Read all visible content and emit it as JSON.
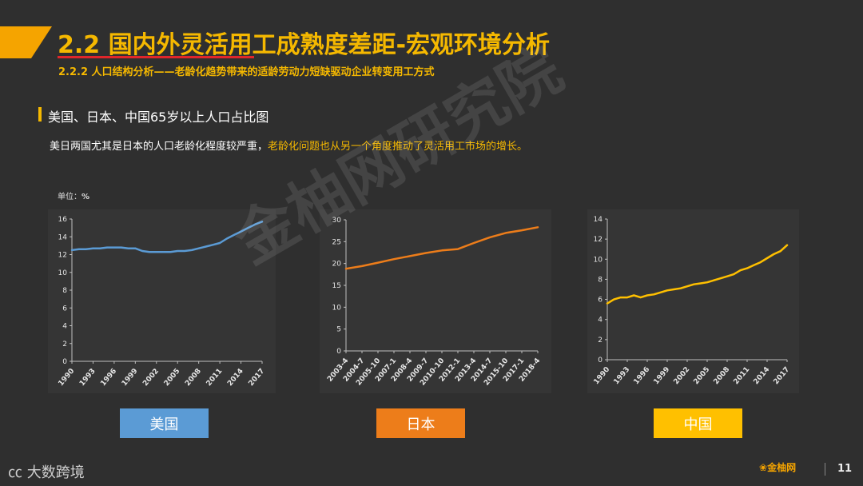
{
  "header": {
    "title": "2.2 国内外灵活用工成熟度差距-宏观环境分析",
    "subtitle": "2.2.2 人口结构分析——老龄化趋势带来的适龄劳动力短缺驱动企业转变用工方式"
  },
  "section": {
    "title": "美国、日本、中国65岁以上人口占比图",
    "desc_normal": "美日两国尤其是日本的人口老龄化程度较严重，",
    "desc_highlight": "老龄化问题也从另一个角度推动了灵活用工市场的增长。"
  },
  "unit_label": "单位：",
  "unit_value": "%",
  "watermark": "金柚网研究院",
  "footer": {
    "logo_text": "大数跨境",
    "brand": "金柚网",
    "page": "11"
  },
  "colors": {
    "usa": "#5b9bd5",
    "japan": "#ed7d1a",
    "china": "#ffc000",
    "accent": "#f5b800"
  },
  "chart_data": [
    {
      "type": "line",
      "title": "美国",
      "x": [
        "1990",
        "1991",
        "1992",
        "1993",
        "1994",
        "1995",
        "1996",
        "1997",
        "1998",
        "1999",
        "2000",
        "2001",
        "2002",
        "2003",
        "2004",
        "2005",
        "2006",
        "2007",
        "2008",
        "2009",
        "2010",
        "2011",
        "2012",
        "2013",
        "2014",
        "2015",
        "2016",
        "2017"
      ],
      "x_ticks": [
        "1990",
        "1993",
        "1996",
        "1999",
        "2002",
        "2005",
        "2008",
        "2011",
        "2014",
        "2017"
      ],
      "values": [
        12.5,
        12.6,
        12.6,
        12.7,
        12.7,
        12.8,
        12.8,
        12.8,
        12.7,
        12.7,
        12.4,
        12.3,
        12.3,
        12.3,
        12.3,
        12.4,
        12.4,
        12.5,
        12.7,
        12.9,
        13.1,
        13.3,
        13.8,
        14.2,
        14.6,
        15.0,
        15.4,
        15.7
      ],
      "ylim": [
        0,
        16
      ],
      "yticks": [
        0,
        2,
        4,
        6,
        8,
        10,
        12,
        14,
        16
      ]
    },
    {
      "type": "line",
      "title": "日本",
      "x": [
        "2003-4",
        "2004-7",
        "2005-10",
        "2007-1",
        "2008-4",
        "2009-7",
        "2010-10",
        "2012-1",
        "2013-4",
        "2014-7",
        "2015-10",
        "2017-1",
        "2018-4"
      ],
      "values": [
        18.8,
        19.4,
        20.2,
        21.0,
        21.7,
        22.4,
        23.0,
        23.3,
        24.7,
        26.0,
        27.0,
        27.6,
        28.3
      ],
      "ylim": [
        0,
        30
      ],
      "yticks": [
        0,
        5,
        10,
        15,
        20,
        25,
        30
      ]
    },
    {
      "type": "line",
      "title": "中国",
      "x": [
        "1990",
        "1991",
        "1992",
        "1993",
        "1994",
        "1995",
        "1996",
        "1997",
        "1998",
        "1999",
        "2000",
        "2001",
        "2002",
        "2003",
        "2004",
        "2005",
        "2006",
        "2007",
        "2008",
        "2009",
        "2010",
        "2011",
        "2012",
        "2013",
        "2014",
        "2015",
        "2016",
        "2017"
      ],
      "x_ticks": [
        "1990",
        "1993",
        "1996",
        "1999",
        "2002",
        "2005",
        "2008",
        "2011",
        "2014",
        "2017"
      ],
      "values": [
        5.6,
        6.0,
        6.2,
        6.2,
        6.4,
        6.2,
        6.4,
        6.5,
        6.7,
        6.9,
        7.0,
        7.1,
        7.3,
        7.5,
        7.6,
        7.7,
        7.9,
        8.1,
        8.3,
        8.5,
        8.9,
        9.1,
        9.4,
        9.7,
        10.1,
        10.5,
        10.8,
        11.4
      ],
      "ylim": [
        0,
        14
      ],
      "yticks": [
        0,
        2,
        4,
        6,
        8,
        10,
        12,
        14
      ]
    }
  ]
}
